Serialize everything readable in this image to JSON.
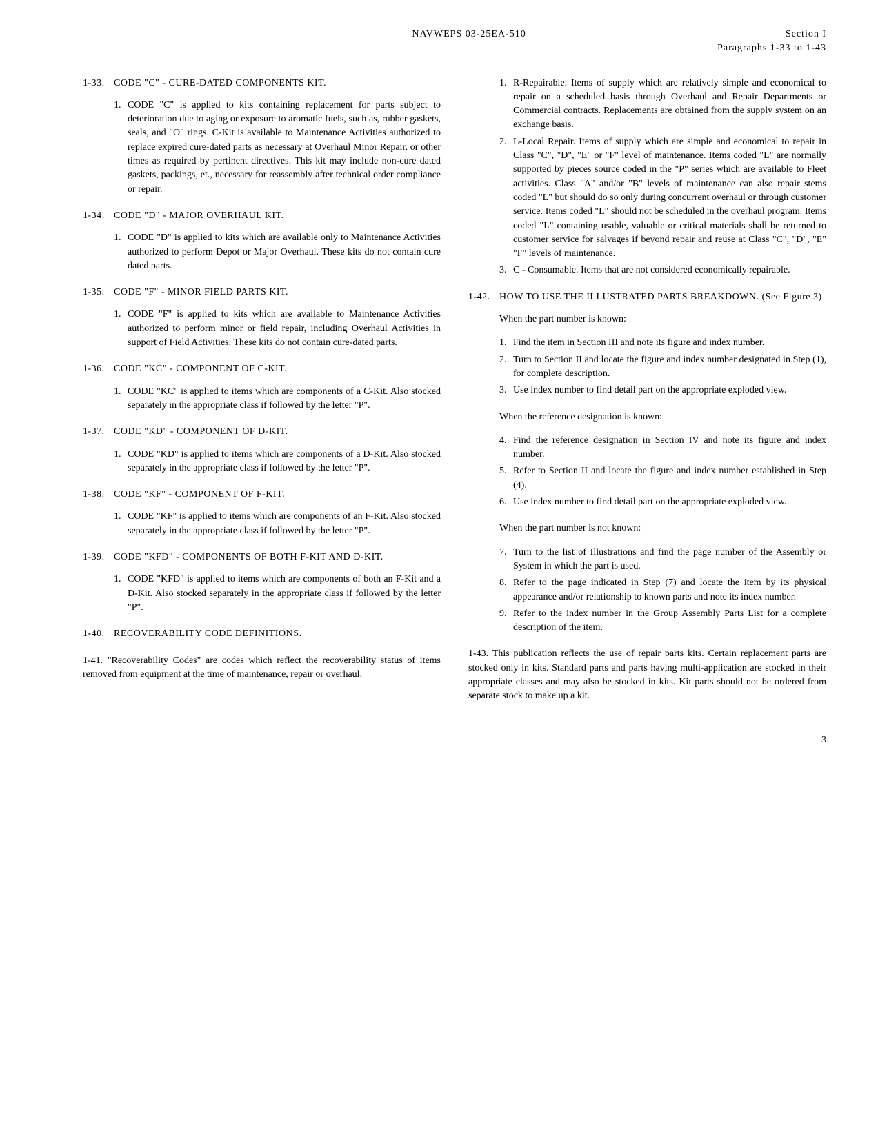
{
  "header": {
    "doc_number": "NAVWEPS 03-25EA-510",
    "section": "Section I",
    "para_range": "Paragraphs 1-33 to 1-43"
  },
  "left_column": {
    "p133": {
      "num": "1-33.",
      "title": "CODE \"C\" - CURE-DATED COMPONENTS KIT.",
      "item1": "CODE \"C\" is applied to kits containing replacement for parts subject to deterioration due to aging or exposure to aromatic fuels, such as, rubber gaskets, seals, and \"O\" rings. C-Kit is available to Maintenance Activities authorized to replace expired cure-dated parts as necessary at Overhaul Minor Repair, or other times as required by pertinent directives. This kit may include non-cure dated gaskets, packings, et., necessary for reassembly after technical order compliance or repair."
    },
    "p134": {
      "num": "1-34.",
      "title": "CODE \"D\" - MAJOR OVERHAUL KIT.",
      "item1": "CODE \"D\" is applied to kits which are available only to Maintenance Activities authorized to perform Depot or Major Overhaul. These kits do not contain cure dated parts."
    },
    "p135": {
      "num": "1-35.",
      "title": "CODE \"F\" - MINOR FIELD PARTS KIT.",
      "item1": "CODE \"F\" is applied to kits which are available to Maintenance Activities authorized to perform minor or field repair, including Overhaul Activities in support of Field Activities. These kits do not contain cure-dated parts."
    },
    "p136": {
      "num": "1-36.",
      "title": "CODE \"KC\" - COMPONENT OF C-KIT.",
      "item1": "CODE \"KC\" is applied to items which are components of a C-Kit. Also stocked separately in the appropriate class if followed by the letter \"P\"."
    },
    "p137": {
      "num": "1-37.",
      "title": "CODE \"KD\" - COMPONENT OF D-KIT.",
      "item1": "CODE \"KD\" is applied to items which are components of a D-Kit. Also stocked separately in the appropriate class if followed by the letter \"P\"."
    },
    "p138": {
      "num": "1-38.",
      "title": "CODE \"KF\" - COMPONENT OF F-KIT.",
      "item1": "CODE \"KF\" is applied to items which are components of an F-Kit. Also stocked separately in the appropriate class if followed by the letter \"P\"."
    },
    "p139": {
      "num": "1-39.",
      "title": "CODE \"KFD\" - COMPONENTS OF BOTH F-KIT AND D-KIT.",
      "item1": "CODE \"KFD\" is applied to items which are components of both an F-Kit and a D-Kit. Also stocked separately in the appropriate class if followed by the letter \"P\"."
    },
    "p140": {
      "num": "1-40.",
      "title": "RECOVERABILITY CODE DEFINITIONS."
    },
    "p141": {
      "text": "1-41. \"Recoverability Codes\" are codes which reflect the recoverability status of items removed from equipment at the time of maintenance, repair or overhaul."
    }
  },
  "right_column": {
    "recov_items": {
      "r1_num": "1.",
      "r1": "R-Repairable. Items of supply which are relatively simple and economical to repair on a scheduled basis through Overhaul and Repair Departments or Commercial contracts. Replacements are obtained from the supply system on an exchange basis.",
      "r2_num": "2.",
      "r2": "L-Local Repair. Items of supply which are simple and economical to repair in Class \"C\", \"D\", \"E\" or \"F\" level of maintenance. Items coded \"L\" are normally supported by pieces source coded in the \"P\" series which are available to Fleet activities. Class \"A\" and/or \"B\" levels of maintenance can also repair stems coded \"L\" but should do so only during concurrent overhaul or through customer service. Items coded \"L\" should not be scheduled in the overhaul program. Items coded \"L\" containing usable, valuable or critical materials shall be returned to customer service for salvages if beyond repair and reuse at Class \"C\", \"D\", \"E\" \"F\" levels of maintenance.",
      "r3_num": "3.",
      "r3": "C - Consumable. Items that are not considered economically repairable."
    },
    "p142": {
      "num": "1-42.",
      "title": "HOW TO USE THE ILLUSTRATED PARTS BREAKDOWN. (See Figure 3)",
      "when_known": "When the part number is known:",
      "s1_num": "1.",
      "s1": "Find the item in Section III and note its figure and index number.",
      "s2_num": "2.",
      "s2": "Turn to Section II and locate the figure and index number designated in Step (1), for complete description.",
      "s3_num": "3.",
      "s3": "Use index number to find detail part on the appropriate exploded view.",
      "when_ref": "When the reference designation is known:",
      "s4_num": "4.",
      "s4": "Find the reference designation in Section IV and note its figure and index number.",
      "s5_num": "5.",
      "s5": "Refer to Section II and locate the figure and index number established in Step (4).",
      "s6_num": "6.",
      "s6": "Use index number to find detail part on the appropriate exploded view.",
      "when_unknown": "When the part number is not known:",
      "s7_num": "7.",
      "s7": "Turn to the list of Illustrations and find the page number of the Assembly or System in which the part is used.",
      "s8_num": "8.",
      "s8": "Refer to the page indicated in Step (7) and locate the item by its physical appearance and/or relationship to known parts and note its index number.",
      "s9_num": "9.",
      "s9": "Refer to the index number in the Group Assembly Parts List for a complete description of the item."
    },
    "p143": {
      "text": "1-43. This publication reflects the use of repair parts kits. Certain replacement parts are stocked only in kits. Standard parts and parts having multi-application are stocked in their appropriate classes and may also be stocked in kits. Kit parts should not be ordered from separate stock to make up a kit."
    }
  },
  "page_number": "3"
}
